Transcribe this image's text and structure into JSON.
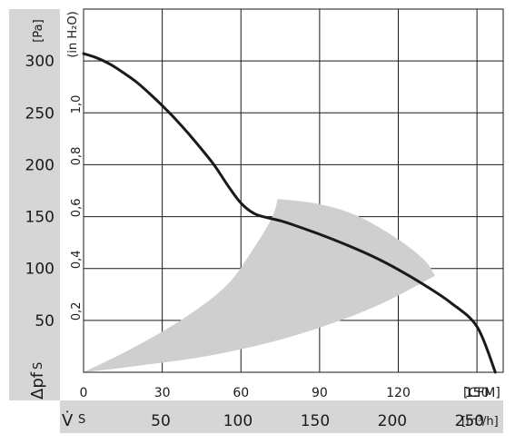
{
  "chart_data": {
    "type": "line",
    "title": "",
    "ylabel": "Δpf",
    "ylabel_suffix": "S",
    "xlabel": "V̇",
    "xlabel_suffix": "S",
    "pa_unit": "[Pa]",
    "inh2o_unit": "(in H₂O)",
    "cfm_unit": "[CFM]",
    "m3h_unit": "[m³/h]",
    "axes": {
      "cfm": {
        "range": [
          0,
          160
        ],
        "ticks": [
          0,
          30,
          60,
          90,
          120,
          150
        ],
        "labels": [
          "0",
          "30",
          "60",
          "90",
          "120",
          "150"
        ]
      },
      "pa": {
        "range": [
          0,
          350
        ],
        "ticks": [
          50,
          100,
          150,
          200,
          250,
          300
        ],
        "labels": [
          "50",
          "100",
          "150",
          "200",
          "250",
          "300"
        ]
      },
      "inh2o": {
        "ticks": [
          0.2,
          0.4,
          0.6,
          0.8,
          1.0
        ],
        "labels": [
          "0,2",
          "0,4",
          "0,6",
          "0,8",
          "1,0"
        ]
      },
      "m3h": {
        "ticks": [
          50,
          100,
          150,
          200,
          250
        ],
        "labels": [
          "50",
          "100",
          "150",
          "200",
          "250"
        ]
      }
    },
    "grid": true,
    "series": [
      {
        "x": [
          0,
          5,
          10,
          15,
          20,
          25,
          30,
          35,
          40,
          45,
          50,
          55,
          60,
          65,
          70,
          75,
          80,
          90,
          100,
          110,
          120,
          130,
          140,
          150,
          157
        ],
        "y": [
          307,
          303,
          297,
          289,
          280,
          269,
          257,
          244,
          230,
          215,
          199,
          180,
          163,
          153,
          149,
          146,
          142,
          133,
          123,
          112,
          99,
          84,
          67,
          44,
          0
        ]
      }
    ],
    "operating_region": {
      "upper_left": {
        "x": [
          0,
          20,
          40,
          55,
          65,
          72,
          74
        ],
        "y": [
          0,
          25,
          55,
          85,
          120,
          150,
          167
        ]
      },
      "upper_right": {
        "x": [
          74,
          90,
          105,
          120,
          130,
          134
        ],
        "y": [
          167,
          162,
          150,
          128,
          108,
          93
        ]
      },
      "lower": {
        "x": [
          134,
          110,
          80,
          50,
          20,
          0
        ],
        "y": [
          93,
          62,
          35,
          17,
          6,
          0
        ]
      }
    }
  }
}
